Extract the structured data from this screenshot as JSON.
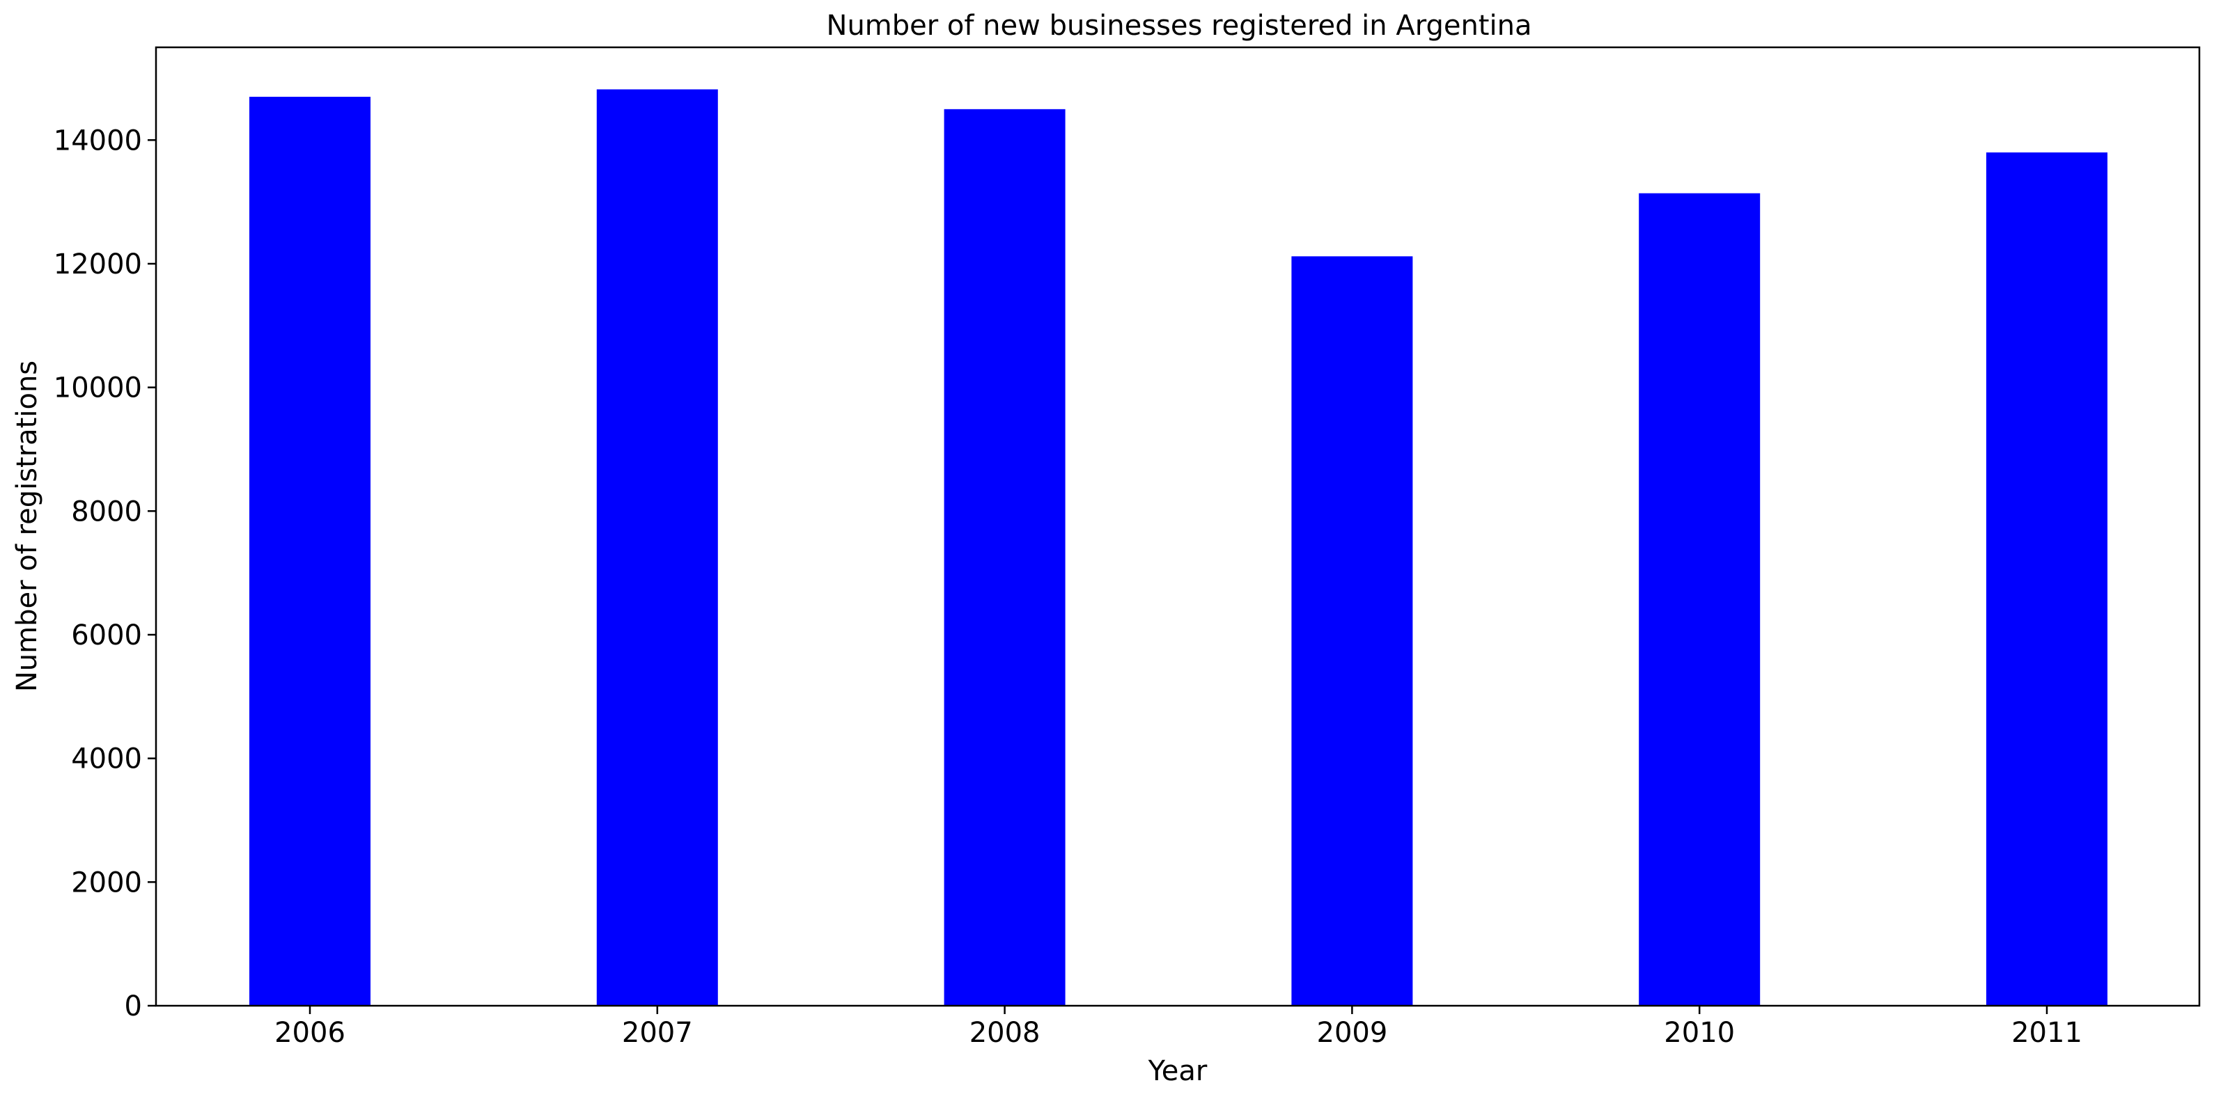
{
  "chart_data": {
    "type": "bar",
    "title": "Number of new businesses registered in Argentina",
    "xlabel": "Year",
    "ylabel": "Number of registrations",
    "categories": [
      "2006",
      "2007",
      "2008",
      "2009",
      "2010",
      "2011"
    ],
    "values": [
      14700,
      14820,
      14500,
      12120,
      13140,
      13800
    ],
    "ylim": [
      0,
      15500
    ],
    "yticks": [
      0,
      2000,
      4000,
      6000,
      8000,
      10000,
      12000,
      14000
    ],
    "bar_color": "#0000ff",
    "grid": false,
    "legend": "none"
  }
}
